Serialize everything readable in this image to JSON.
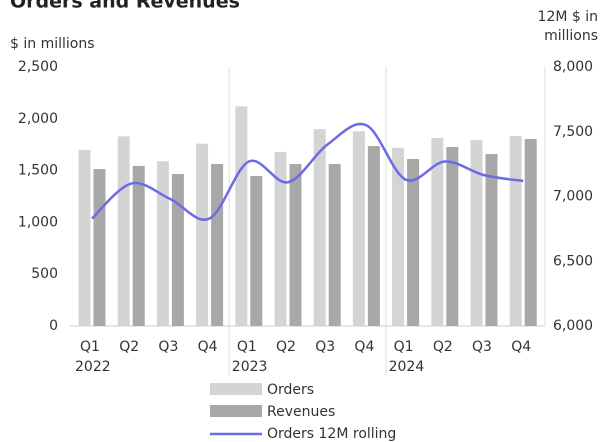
{
  "chart_data": {
    "type": "bar_line",
    "title": "Orders and Revenues",
    "y_label": "$ in millions",
    "y2_label": [
      "12M $ in",
      "millions"
    ],
    "groups": [
      "2022",
      "2023",
      "2024"
    ],
    "categories": [
      "Q1",
      "Q2",
      "Q3",
      "Q4",
      "Q1",
      "Q2",
      "Q3",
      "Q4",
      "Q1",
      "Q2",
      "Q3",
      "Q4"
    ],
    "series": [
      {
        "name": "Orders",
        "type": "bar",
        "color": "#d4d4d4",
        "values": [
          1700,
          1830,
          1590,
          1760,
          2120,
          1680,
          1900,
          1880,
          1720,
          1815,
          1795,
          1834
        ]
      },
      {
        "name": "Revenues",
        "type": "bar",
        "color": "#a8a8a8",
        "values": [
          1515,
          1545,
          1467,
          1564,
          1448,
          1564,
          1564,
          1737,
          1612,
          1728,
          1660,
          1805
        ]
      },
      {
        "name": "Orders 12M rolling",
        "type": "line",
        "axis": "y2",
        "color": "#6b6be6",
        "values": [
          6830,
          7100,
          6980,
          6830,
          7270,
          7110,
          7400,
          7550,
          7130,
          7270,
          7165,
          7120
        ]
      }
    ],
    "ylim": [
      0,
      2500
    ],
    "yticks": [
      0,
      500,
      {
        "value": 1000,
        "label": "1,000"
      },
      {
        "value": 1500,
        "label": "1,500"
      },
      {
        "value": 2000,
        "label": "2,000"
      },
      {
        "value": 2500,
        "label": "2,500"
      }
    ],
    "y2lim": [
      6000,
      8000
    ],
    "y2ticks": [
      {
        "value": 6000,
        "label": "6,000"
      },
      {
        "value": 6500,
        "label": "6,500"
      },
      {
        "value": 7000,
        "label": "7,000"
      },
      {
        "value": 7500,
        "label": "7,500"
      },
      {
        "value": 8000,
        "label": "8,000"
      }
    ],
    "legend": "bottom"
  }
}
